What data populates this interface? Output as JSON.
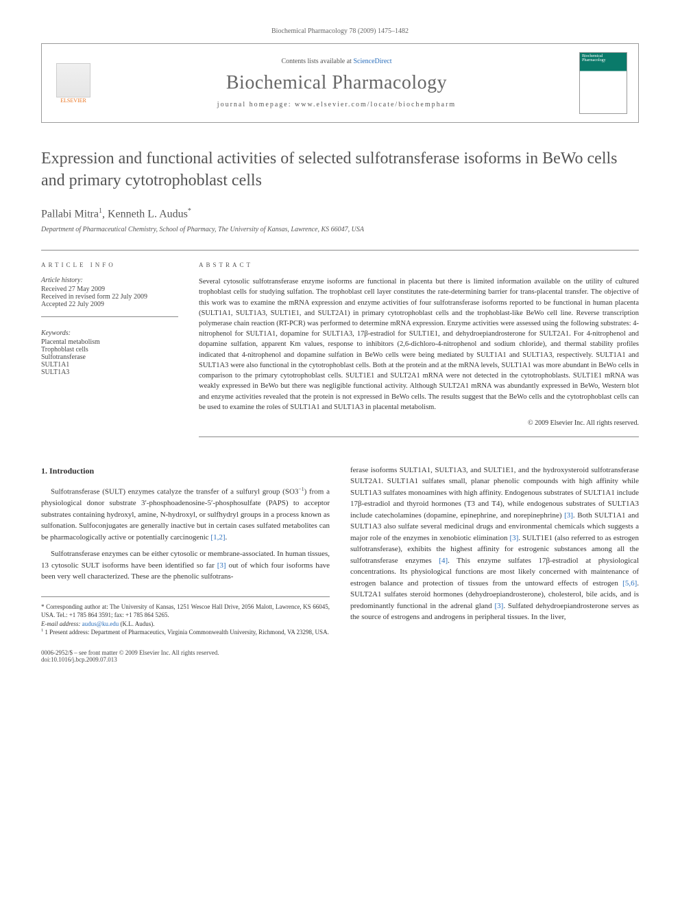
{
  "running_head": "Biochemical Pharmacology 78 (2009) 1475–1482",
  "header": {
    "contents_prefix": "Contents lists available at ",
    "contents_link": "ScienceDirect",
    "journal": "Biochemical Pharmacology",
    "homepage_prefix": "journal homepage: ",
    "homepage": "www.elsevier.com/locate/biochempharm",
    "publisher": "ELSEVIER",
    "cover_label": "Biochemical Pharmacology"
  },
  "title": "Expression and functional activities of selected sulfotransferase isoforms in BeWo cells and primary cytotrophoblast cells",
  "authors": {
    "a1": "Pallabi Mitra",
    "a1_sup": "1",
    "a2": "Kenneth L. Audus",
    "a2_sup": "*"
  },
  "affiliation": "Department of Pharmaceutical Chemistry, School of Pharmacy, The University of Kansas, Lawrence, KS 66047, USA",
  "article_info": {
    "head": "ARTICLE INFO",
    "history_label": "Article history:",
    "received": "Received 27 May 2009",
    "revised": "Received in revised form 22 July 2009",
    "accepted": "Accepted 22 July 2009",
    "keywords_label": "Keywords:",
    "kw1": "Placental metabolism",
    "kw2": "Trophoblast cells",
    "kw3": "Sulfotransferase",
    "kw4": "SULT1A1",
    "kw5": "SULT1A3"
  },
  "abstract": {
    "head": "ABSTRACT",
    "text": "Several cytosolic sulfotransferase enzyme isoforms are functional in placenta but there is limited information available on the utility of cultured trophoblast cells for studying sulfation. The trophoblast cell layer constitutes the rate-determining barrier for trans-placental transfer. The objective of this work was to examine the mRNA expression and enzyme activities of four sulfotransferase isoforms reported to be functional in human placenta (SULT1A1, SULT1A3, SULT1E1, and SULT2A1) in primary cytotrophoblast cells and the trophoblast-like BeWo cell line. Reverse transcription polymerase chain reaction (RT-PCR) was performed to determine mRNA expression. Enzyme activities were assessed using the following substrates: 4-nitrophenol for SULT1A1, dopamine for SULT1A3, 17β-estradiol for SULT1E1, and dehydroepiandrosterone for SULT2A1. For 4-nitrophenol and dopamine sulfation, apparent Km values, response to inhibitors (2,6-dichloro-4-nitrophenol and sodium chloride), and thermal stability profiles indicated that 4-nitrophenol and dopamine sulfation in BeWo cells were being mediated by SULT1A1 and SULT1A3, respectively. SULT1A1 and SULT1A3 were also functional in the cytotrophoblast cells. Both at the protein and at the mRNA levels, SULT1A1 was more abundant in BeWo cells in comparison to the primary cytotrophoblast cells. SULT1E1 and SULT2A1 mRNA were not detected in the cytotrophoblasts. SULT1E1 mRNA was weakly expressed in BeWo but there was negligible functional activity. Although SULT2A1 mRNA was abundantly expressed in BeWo, Western blot and enzyme activities revealed that the protein is not expressed in BeWo cells. The results suggest that the BeWo cells and the cytotrophoblast cells can be used to examine the roles of SULT1A1 and SULT1A3 in placental metabolism.",
    "copyright": "© 2009 Elsevier Inc. All rights reserved."
  },
  "body": {
    "sec1_head": "1. Introduction",
    "p1a": "Sulfotransferase (SULT) enzymes catalyze the transfer of a sulfuryl group (SO3",
    "p1b": ") from a physiological donor substrate 3′-phosphoadenosine-5′-phosphosulfate (PAPS) to acceptor substrates containing hydroxyl, amine, N-hydroxyl, or sulfhydryl groups in a process known as sulfonation. Sulfoconjugates are generally inactive but in certain cases sulfated metabolites can be pharmacologically active or potentially carcinogenic ",
    "ref1": "[1,2]",
    "p1c": ".",
    "p2a": "Sulfotransferase enzymes can be either cytosolic or membrane-associated. In human tissues, 13 cytosolic SULT isoforms have been identified so far ",
    "ref2": "[3]",
    "p2b": " out of which four isoforms have been very well characterized. These are the phenolic sulfotrans-",
    "p3a": "ferase isoforms SULT1A1, SULT1A3, and SULT1E1, and the hydroxysteroid sulfotransferase SULT2A1. SULT1A1 sulfates small, planar phenolic compounds with high affinity while SULT1A3 sulfates monoamines with high affinity. Endogenous substrates of SULT1A1 include 17β-estradiol and thyroid hormones (T3 and T4), while endogenous substrates of SULT1A3 include catecholamines (dopamine, epinephrine, and norepinephrine) ",
    "ref3a": "[3]",
    "p3b": ". Both SULT1A1 and SULT1A3 also sulfate several medicinal drugs and environmental chemicals which suggests a major role of the enzymes in xenobiotic elimination ",
    "ref3b": "[3]",
    "p3c": ". SULT1E1 (also referred to as estrogen sulfotransferase), exhibits the highest affinity for estrogenic substances among all the sulfotransferase enzymes ",
    "ref4": "[4]",
    "p3d": ". This enzyme sulfates 17β-estradiol at physiological concentrations. Its physiological functions are most likely concerned with maintenance of estrogen balance and protection of tissues from the untoward effects of estrogen ",
    "ref56": "[5,6]",
    "p3e": ". SULT2A1 sulfates steroid hormones (dehydroepiandrosterone), cholesterol, bile acids, and is predominantly functional in the adrenal gland ",
    "ref3c": "[3]",
    "p3f": ". Sulfated dehydroepiandrosterone serves as the source of estrogens and androgens in peripheral tissues. In the liver,"
  },
  "footnotes": {
    "corr": "* Corresponding author at: The University of Kansas, 1251 Wescoe Hall Drive, 2056 Malott, Lawrence, KS 66045, USA. Tel.: +1 785 864 3591; fax: +1 785 864 5265.",
    "email_label": "E-mail address: ",
    "email": "audus@ku.edu",
    "email_who": " (K.L. Audus).",
    "present": "1 Present address: Department of Pharmaceutics, Virginia Commonwealth University, Richmond, VA 23298, USA."
  },
  "bottom": {
    "line1": "0006-2952/$ – see front matter © 2009 Elsevier Inc. All rights reserved.",
    "line2": "doi:10.1016/j.bcp.2009.07.013"
  },
  "colors": {
    "link": "#2a6ebb",
    "text": "#333333",
    "muted": "#666666",
    "rule": "#888888",
    "elsevier": "#e9711c"
  }
}
